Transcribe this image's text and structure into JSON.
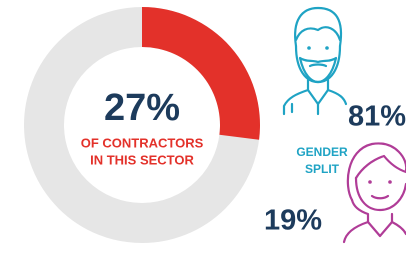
{
  "chart_data": [
    {
      "type": "donut",
      "values": [
        27
      ],
      "value_labels": [
        "27%"
      ],
      "color": "#e3312a",
      "track_color": "#e6e6e6",
      "annotations": [
        "OF CONTRACTORS",
        "IN THIS SECTOR"
      ]
    },
    {
      "type": "pictograph",
      "values": [
        81,
        19
      ],
      "value_labels": [
        "81%",
        "19%"
      ],
      "colors": [
        "#1fa3c4",
        "#b03c97"
      ],
      "annotations": [
        "GENDER",
        "SPLIT"
      ]
    }
  ]
}
